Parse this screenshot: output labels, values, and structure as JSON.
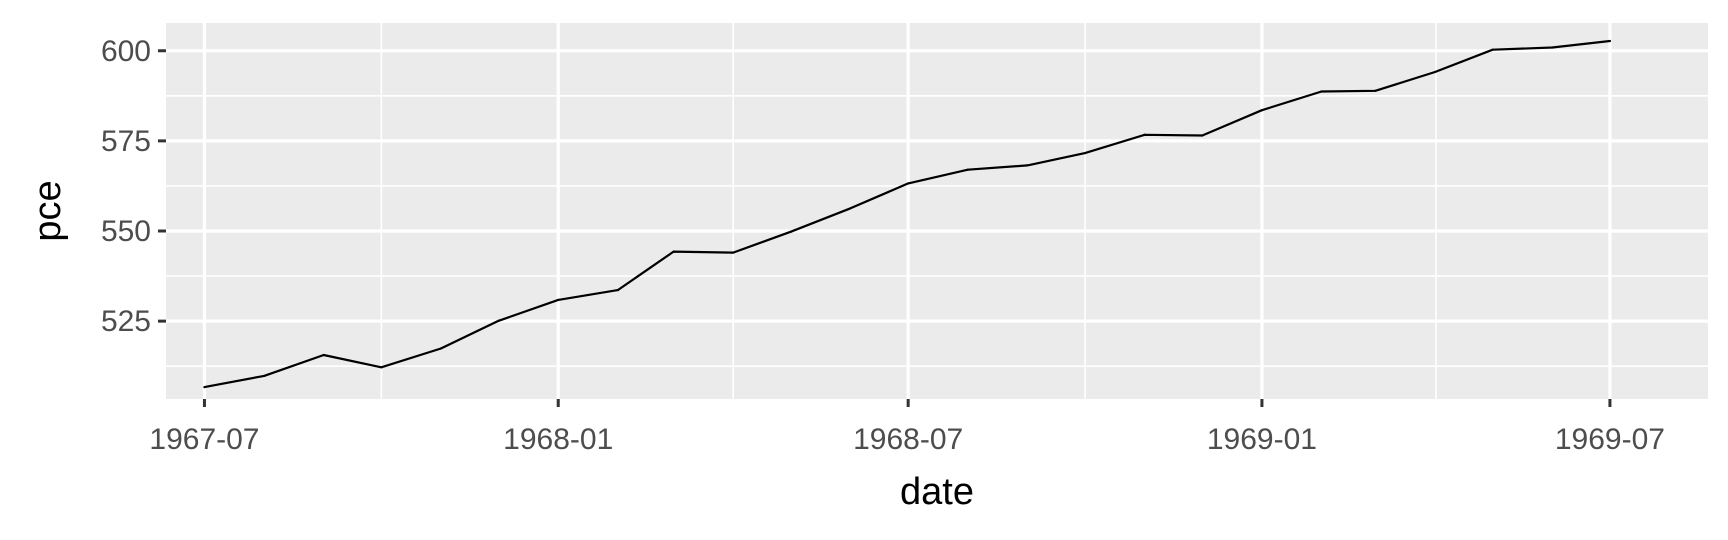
{
  "chart_data": {
    "type": "line",
    "xlabel": "date",
    "ylabel": "pce",
    "x_ticks": [
      "1967-07",
      "1968-01",
      "1968-07",
      "1969-01",
      "1969-07"
    ],
    "y_ticks": [
      525,
      550,
      575,
      600
    ],
    "xlim": [
      "1967-06-11",
      "1969-08-21"
    ],
    "ylim": [
      503.4,
      607.7
    ],
    "grid": true,
    "series": [
      {
        "x": [
          "1967-07-01",
          "1967-08-01",
          "1967-09-01",
          "1967-10-01",
          "1967-11-01",
          "1967-12-01",
          "1968-01-01",
          "1968-02-01",
          "1968-03-01",
          "1968-04-01",
          "1968-05-01",
          "1968-06-01",
          "1968-07-01",
          "1968-08-01",
          "1968-09-01",
          "1968-10-01",
          "1968-11-01",
          "1968-12-01",
          "1969-01-01",
          "1969-02-01",
          "1969-03-01",
          "1969-04-01",
          "1969-05-01",
          "1969-06-01",
          "1969-07-01"
        ],
        "values": [
          506.7,
          509.8,
          515.6,
          512.2,
          517.4,
          525.1,
          530.9,
          533.6,
          544.3,
          544.0,
          549.8,
          556.3,
          563.2,
          567.0,
          568.2,
          571.6,
          576.7,
          576.5,
          583.5,
          588.7,
          588.9,
          594.1,
          600.3,
          600.9,
          602.7
        ],
        "color": "#000000"
      }
    ],
    "colors": {
      "panel": "#ebebeb",
      "grid": "#ffffff",
      "line": "#000000",
      "tick_text": "#4d4d4d"
    }
  }
}
